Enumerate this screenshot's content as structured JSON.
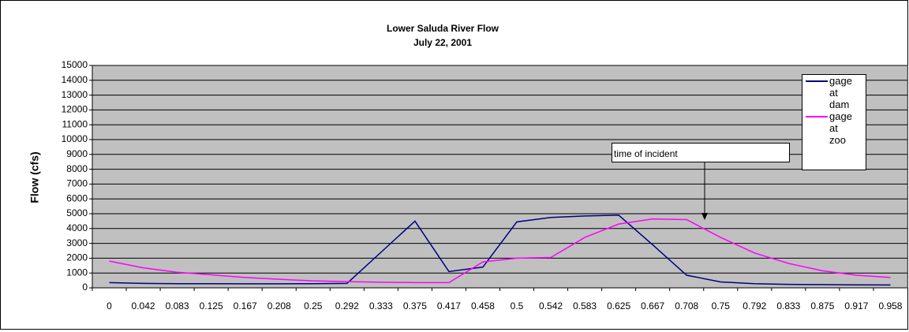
{
  "chart_data": {
    "type": "line",
    "title": [
      "Lower Saluda River Flow",
      "July 22, 2001"
    ],
    "y_label": "Flow (cfs)",
    "annotation": "time of incident",
    "categories": [
      "0",
      "0.042",
      "0.083",
      "0.125",
      "0.167",
      "0.208",
      "0.25",
      "0.292",
      "0.333",
      "0.375",
      "0.417",
      "0.458",
      "0.5",
      "0.542",
      "0.583",
      "0.625",
      "0.667",
      "0.708",
      "0.75",
      "0.792",
      "0.833",
      "0.875",
      "0.917",
      "0.958"
    ],
    "series": [
      {
        "name": "gage at dam",
        "color": "#000080",
        "values": [
          350,
          300,
          280,
          280,
          270,
          270,
          280,
          300,
          2400,
          4500,
          1100,
          1400,
          4450,
          4750,
          4850,
          4900,
          2900,
          850,
          400,
          280,
          230,
          220,
          200,
          190
        ]
      },
      {
        "name": "gage at zoo",
        "color": "#ff00ff",
        "values": [
          1800,
          1350,
          1050,
          880,
          700,
          580,
          470,
          420,
          380,
          350,
          350,
          1750,
          2000,
          2050,
          3400,
          4300,
          4650,
          4600,
          3400,
          2350,
          1650,
          1150,
          850,
          700
        ]
      }
    ],
    "ylim": [
      0,
      15000
    ],
    "yticks": [
      0,
      1000,
      2000,
      3000,
      4000,
      5000,
      6000,
      7000,
      8000,
      9000,
      10000,
      11000,
      12000,
      13000,
      14000,
      15000
    ],
    "grid": true
  }
}
